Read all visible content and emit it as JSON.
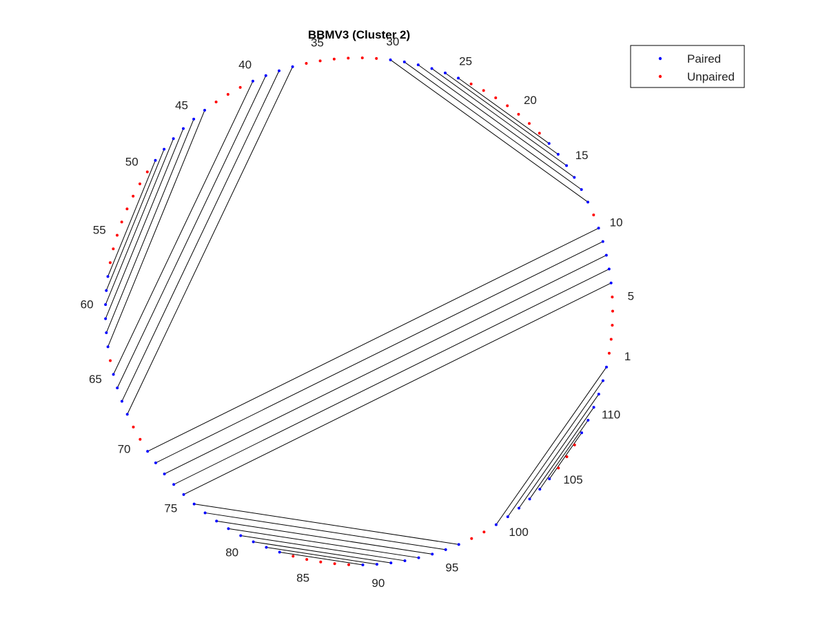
{
  "chart_data": {
    "type": "scatter",
    "title": "BBMV3 (Cluster 2)",
    "n_positions": 113,
    "tick_labels": [
      "1",
      "5",
      "10",
      "15",
      "20",
      "25",
      "30",
      "35",
      "40",
      "45",
      "50",
      "55",
      "60",
      "65",
      "70",
      "75",
      "80",
      "85",
      "90",
      "95",
      "100",
      "105",
      "110"
    ],
    "tick_positions": [
      1,
      5,
      10,
      15,
      20,
      25,
      30,
      35,
      40,
      45,
      50,
      55,
      60,
      65,
      70,
      75,
      80,
      85,
      90,
      95,
      100,
      105,
      110
    ],
    "pairs": [
      [
        6,
        75
      ],
      [
        7,
        74
      ],
      [
        8,
        73
      ],
      [
        9,
        72
      ],
      [
        10,
        71
      ],
      [
        12,
        30
      ],
      [
        13,
        29
      ],
      [
        14,
        28
      ],
      [
        15,
        27
      ],
      [
        16,
        26
      ],
      [
        17,
        25
      ],
      [
        37,
        68
      ],
      [
        38,
        67
      ],
      [
        39,
        66
      ],
      [
        40,
        65
      ],
      [
        44,
        63
      ],
      [
        45,
        62
      ],
      [
        46,
        61
      ],
      [
        47,
        60
      ],
      [
        48,
        59
      ],
      [
        49,
        58
      ],
      [
        76,
        96
      ],
      [
        77,
        95
      ],
      [
        78,
        94
      ],
      [
        79,
        93
      ],
      [
        80,
        92
      ],
      [
        81,
        91
      ],
      [
        82,
        90
      ],
      [
        83,
        89
      ],
      [
        99,
        113
      ],
      [
        100,
        112
      ],
      [
        101,
        111
      ],
      [
        102,
        110
      ],
      [
        103,
        109
      ],
      [
        104,
        108
      ]
    ],
    "series": [
      {
        "name": "Paired",
        "color": "#0000ff",
        "marker": "dot"
      },
      {
        "name": "Unpaired",
        "color": "#ff0000",
        "marker": "dot"
      }
    ],
    "line_color": "#000000",
    "legend_position": "top-right",
    "grid": false
  }
}
